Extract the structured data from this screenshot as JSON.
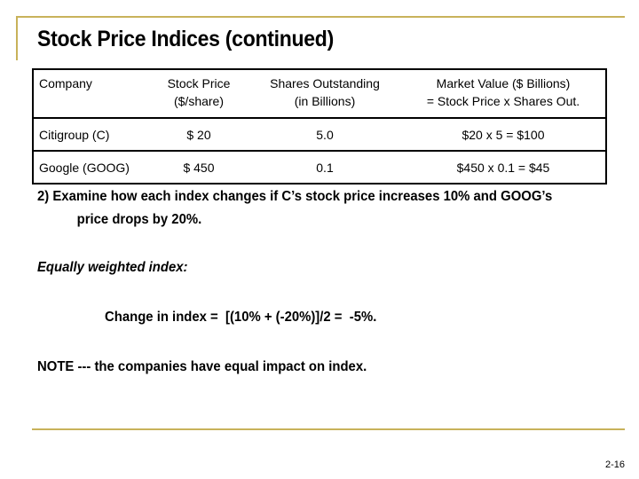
{
  "slide": {
    "title": "Stock Price Indices (continued)",
    "slide_number": "2-16"
  },
  "table": {
    "headers": {
      "company": "Company",
      "price_line1": "Stock Price",
      "price_line2": "($/share)",
      "shares_line1": "Shares Outstanding",
      "shares_line2": "(in Billions)",
      "value_line1": "Market Value ($ Billions)",
      "value_line2": "= Stock Price x Shares Out."
    },
    "rows": [
      {
        "company": "Citigroup (C)",
        "price": "$ 20",
        "shares": "5.0",
        "value": "$20 x 5 = $100"
      },
      {
        "company": "Google (GOOG)",
        "price": "$ 450",
        "shares": "0.1",
        "value": "$450 x 0.1  =  $45"
      }
    ]
  },
  "question": {
    "line1": "2) Examine how each index changes if C’s stock price increases 10% and GOOG’s",
    "line2": "price drops by 20%."
  },
  "equal_weighted": {
    "heading": "Equally weighted index:",
    "calc": "Change in index =  [(10% + (-20%)]/2 =  -5%.",
    "note": "NOTE --- the companies have equal impact on index."
  }
}
